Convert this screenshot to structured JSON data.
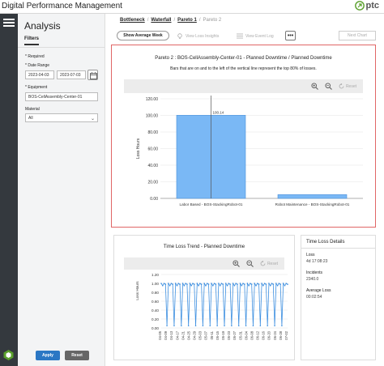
{
  "app": {
    "title": "Digital Performance Management",
    "brand": "ptc"
  },
  "filters": {
    "title": "Analysis",
    "tab": "Filters",
    "required_note": "* Required",
    "date_range_label": "* Date Range",
    "date_start": "2023-04-03",
    "date_end": "2023-07-03",
    "equipment_label": "* Equipment",
    "equipment_value": "BOS-CellAssembly-Center-01",
    "material_label": "Material",
    "material_value": "All",
    "apply_label": "Apply",
    "reset_label": "Reset"
  },
  "breadcrumb": {
    "items": [
      "Bottleneck",
      "Waterfall",
      "Pareto 1"
    ],
    "current": "Pareto 2",
    "separator": "/"
  },
  "toolbar": {
    "show_average_week": "Show Average Week",
    "view_loss_insights": "View Loss Insights",
    "view_event_log": "View Event Log",
    "more": "•••",
    "next_chart": "Next Chart"
  },
  "pareto": {
    "title": "Pareto 2 : BOS-CellAssembly-Center-01 - Planned Downtime / Planned Downtime",
    "subtitle": "Bars that are on and to the left of the vertical line represent the top 80% of losses.",
    "reset_label": "Reset",
    "data_label": "100.14"
  },
  "trend": {
    "title": "Time Loss Trend - Planned Downtime",
    "reset_label": "Reset"
  },
  "details": {
    "title": "Time Loss Details",
    "loss_label": "Loss",
    "loss_value": "4d 17:08:23",
    "incidents_label": "Incidents",
    "incidents_value": "2340.0",
    "avg_loss_label": "Average Loss",
    "avg_loss_value": "00:02:54"
  },
  "colors": {
    "bar": "#7ab8f5",
    "bar_stroke": "#4a90d9",
    "accent": "#2b77c4",
    "highlight_border": "#e06666"
  },
  "chart_data": [
    {
      "type": "bar",
      "title": "Pareto 2 : BOS-CellAssembly-Center-01 - Planned Downtime / Planned Downtime",
      "ylabel": "Loss Hours",
      "categories": [
        "Labor Based - BOS-StackingRobot-01",
        "Robot Maintenance - BOS-StackingRobot-01"
      ],
      "values": [
        100.14,
        4.5
      ],
      "ylim": [
        0,
        120
      ],
      "yticks": [
        "0.00",
        "20.00",
        "40.00",
        "60.00",
        "80.00",
        "100.00",
        "120.00"
      ],
      "grid": true
    },
    {
      "type": "line",
      "title": "Time Loss Trend - Planned Downtime",
      "ylabel": "Loss Hours",
      "ylim": [
        0,
        1.2
      ],
      "yticks": [
        "0.00",
        "0.20",
        "0.40",
        "0.60",
        "0.80",
        "1.00",
        "1.20"
      ],
      "x": [
        "04-05",
        "04-09",
        "04-13",
        "04-17",
        "04-21",
        "04-25",
        "04-29",
        "05-03",
        "05-07",
        "05-11",
        "05-15",
        "05-19",
        "05-23",
        "05-27",
        "05-31",
        "06-04",
        "06-08",
        "06-12",
        "06-16",
        "06-20",
        "06-24",
        "06-28",
        "07-02"
      ],
      "pattern_values": [
        1.0,
        0.95,
        1.0,
        0.98,
        0.05
      ],
      "grid": true
    }
  ]
}
